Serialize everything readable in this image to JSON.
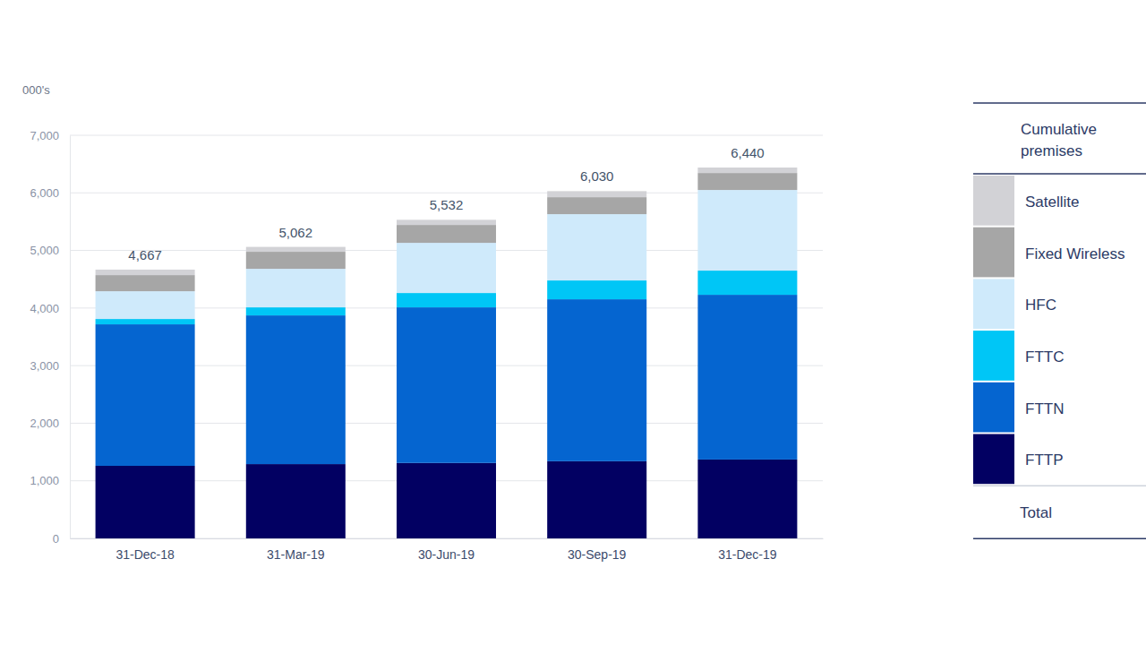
{
  "chart_data": {
    "type": "bar",
    "stacked": true,
    "y_unit": "000's",
    "categories": [
      "31-Dec-18",
      "31-Mar-19",
      "30-Jun-19",
      "30-Sep-19",
      "31-Dec-19"
    ],
    "series": [
      {
        "name": "FTTP",
        "color": "#020062",
        "values": [
          1260,
          1290,
          1310,
          1340,
          1370
        ]
      },
      {
        "name": "FTTN",
        "color": "#0565d0",
        "values": [
          2457,
          2582,
          2702,
          2812,
          2860
        ]
      },
      {
        "name": "FTTC",
        "color": "#00c6f6",
        "values": [
          93,
          140,
          249,
          327,
          420
        ]
      },
      {
        "name": "HFC",
        "color": "#cfeafb",
        "values": [
          482,
          669,
          871,
          1151,
          1400
        ]
      },
      {
        "name": "Fixed Wireless",
        "color": "#a6a6a6",
        "values": [
          280,
          296,
          311,
          295,
          295
        ]
      },
      {
        "name": "Satellite",
        "color": "#d2d2d6",
        "values": [
          95,
          85,
          89,
          105,
          95
        ]
      }
    ],
    "totals": {
      "values": [
        4667,
        5062,
        5532,
        6030,
        6440
      ],
      "value_labels": [
        "4,667",
        "5,062",
        "5,532",
        "6,030",
        "6,440"
      ]
    },
    "ylim": [
      0,
      7000
    ],
    "yticks": [
      0,
      {
        "value": 1000,
        "label": "1,000"
      },
      {
        "value": 2000,
        "label": "2,000"
      },
      {
        "value": 3000,
        "label": "3,000"
      },
      {
        "value": 4000,
        "label": "4,000"
      },
      {
        "value": 5000,
        "label": "5,000"
      },
      {
        "value": 6000,
        "label": "6,000"
      },
      {
        "value": 7000,
        "label": "7,000"
      }
    ],
    "grid": true,
    "legend": "right",
    "legend_title": "Cumulative premises",
    "legend_total_label": "Total"
  }
}
